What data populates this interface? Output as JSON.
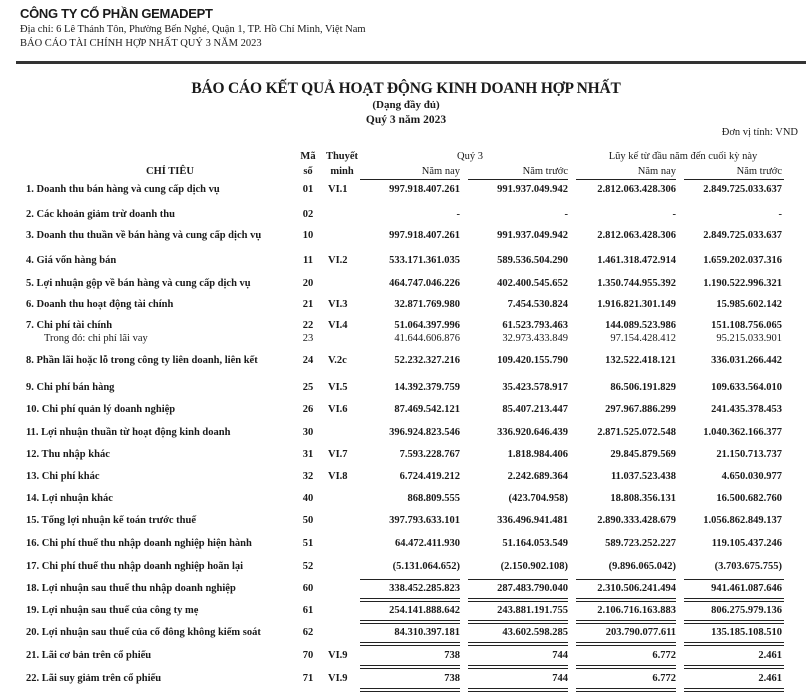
{
  "header": {
    "company": "CÔNG TY CỔ PHẦN GEMADEPT",
    "address": "Địa chỉ: 6 Lê Thánh Tôn, Phường Bến Nghé, Quận 1, TP. Hồ Chí Minh, Việt Nam",
    "report_name": "BÁO CÁO TÀI CHÍNH HỢP NHẤT QUÝ 3 NĂM 2023"
  },
  "title": "BÁO CÁO KẾT QUẢ HOẠT ĐỘNG KINH DOANH HỢP NHẤT",
  "subtitle": "(Dạng đầy đủ)",
  "period": "Quý 3 năm 2023",
  "unit": "Đơn vị tính: VND",
  "columns": {
    "item": "CHỈ TIÊU",
    "code_1": "Mã",
    "code_2": "số",
    "note_1": "Thuyết",
    "note_2": "minh",
    "q3_group": "Quý 3",
    "ytd_group": "Lũy kế từ đầu năm đến cuối kỳ này",
    "this_year": "Năm nay",
    "prior_year": "Năm trước"
  },
  "rows": [
    {
      "label": "1.  Doanh thu bán hàng và cung cấp dịch vụ",
      "code": "01",
      "note": "VI.1",
      "values": [
        "997.918.407.261",
        "991.937.049.942",
        "2.812.063.428.306",
        "2.849.725.033.637"
      ]
    },
    {
      "label": "2.  Các khoản giảm trừ doanh thu",
      "code": "02",
      "note": "",
      "values": [
        "-",
        "-",
        "-",
        "-"
      ]
    },
    {
      "label": "3.  Doanh thu thuần về bán hàng và cung cấp dịch vụ",
      "code": "10",
      "note": "",
      "values": [
        "997.918.407.261",
        "991.937.049.942",
        "2.812.063.428.306",
        "2.849.725.033.637"
      ]
    },
    {
      "label": "4.  Giá vốn hàng bán",
      "code": "11",
      "note": "VI.2",
      "values": [
        "533.171.361.035",
        "589.536.504.290",
        "1.461.318.472.914",
        "1.659.202.037.316"
      ]
    },
    {
      "label": "5.  Lợi nhuận gộp về bán hàng và cung cấp dịch vụ",
      "code": "20",
      "note": "",
      "values": [
        "464.747.046.226",
        "402.400.545.652",
        "1.350.744.955.392",
        "1.190.522.996.321"
      ]
    },
    {
      "label": "6.  Doanh thu hoạt động tài chính",
      "code": "21",
      "note": "VI.3",
      "values": [
        "32.871.769.980",
        "7.454.530.824",
        "1.916.821.301.149",
        "15.985.602.142"
      ]
    },
    {
      "label": "7.  Chi phí tài chính",
      "code": "22",
      "note": "VI.4",
      "values": [
        "51.064.397.996",
        "61.523.793.463",
        "144.089.523.986",
        "151.108.756.065"
      ]
    },
    {
      "label": "Trong đó: chi phí lãi vay",
      "code": "23",
      "note": "",
      "sub": true,
      "values": [
        "41.644.606.876",
        "32.973.433.849",
        "97.154.428.412",
        "95.215.033.901"
      ]
    },
    {
      "label": "8.  Phần lãi hoặc lỗ trong công ty liên doanh, liên kết",
      "code": "24",
      "note": "V.2c",
      "values": [
        "52.232.327.216",
        "109.420.155.790",
        "132.522.418.121",
        "336.031.266.442"
      ]
    },
    {
      "label": "9.  Chi phí bán hàng",
      "code": "25",
      "note": "VI.5",
      "values": [
        "14.392.379.759",
        "35.423.578.917",
        "86.506.191.829",
        "109.633.564.010"
      ]
    },
    {
      "label": "10. Chi phí quản lý doanh nghiệp",
      "code": "26",
      "note": "VI.6",
      "values": [
        "87.469.542.121",
        "85.407.213.447",
        "297.967.886.299",
        "241.435.378.453"
      ]
    },
    {
      "label": "11. Lợi nhuận thuần từ hoạt động kinh doanh",
      "code": "30",
      "note": "",
      "values": [
        "396.924.823.546",
        "336.920.646.439",
        "2.871.525.072.548",
        "1.040.362.166.377"
      ]
    },
    {
      "label": "12. Thu nhập khác",
      "code": "31",
      "note": "VI.7",
      "values": [
        "7.593.228.767",
        "1.818.984.406",
        "29.845.879.569",
        "21.150.713.737"
      ]
    },
    {
      "label": "13. Chi phí khác",
      "code": "32",
      "note": "VI.8",
      "values": [
        "6.724.419.212",
        "2.242.689.364",
        "11.037.523.438",
        "4.650.030.977"
      ]
    },
    {
      "label": "14. Lợi nhuận khác",
      "code": "40",
      "note": "",
      "values": [
        "868.809.555",
        "(423.704.958)",
        "18.808.356.131",
        "16.500.682.760"
      ]
    },
    {
      "label": "15. Tổng lợi nhuận kế toán trước thuế",
      "code": "50",
      "note": "",
      "values": [
        "397.793.633.101",
        "336.496.941.481",
        "2.890.333.428.679",
        "1.056.862.849.137"
      ]
    },
    {
      "label": "16. Chi phí thuế thu nhập doanh nghiệp hiện hành",
      "code": "51",
      "note": "",
      "values": [
        "64.472.411.930",
        "51.164.053.549",
        "589.723.252.227",
        "119.105.437.246"
      ]
    },
    {
      "label": "17. Chi phí thuế thu nhập doanh nghiệp hoãn lại",
      "code": "52",
      "note": "",
      "values": [
        "(5.131.064.652)",
        "(2.150.902.108)",
        "(9.896.065.042)",
        "(3.703.675.755)"
      ]
    },
    {
      "label": "18. Lợi nhuận sau thuế thu nhập doanh nghiệp",
      "code": "60",
      "note": "",
      "values": [
        "338.452.285.823",
        "287.483.790.040",
        "2.310.506.241.494",
        "941.461.087.646"
      ]
    },
    {
      "label": "19. Lợi nhuận sau thuế của công ty mẹ",
      "code": "61",
      "note": "",
      "values": [
        "254.141.888.642",
        "243.881.191.755",
        "2.106.716.163.883",
        "806.275.979.136"
      ]
    },
    {
      "label": "20. Lợi nhuận sau thuế của cổ đông không kiểm soát",
      "code": "62",
      "note": "",
      "values": [
        "84.310.397.181",
        "43.602.598.285",
        "203.790.077.611",
        "135.185.108.510"
      ]
    },
    {
      "label": "21. Lãi cơ bản trên cổ phiếu",
      "code": "70",
      "note": "VI.9",
      "values": [
        "738",
        "744",
        "6.772",
        "2.461"
      ]
    },
    {
      "label": "22. Lãi suy giảm trên cổ phiếu",
      "code": "71",
      "note": "VI.9",
      "values": [
        "738",
        "744",
        "6.772",
        "2.461"
      ]
    }
  ]
}
